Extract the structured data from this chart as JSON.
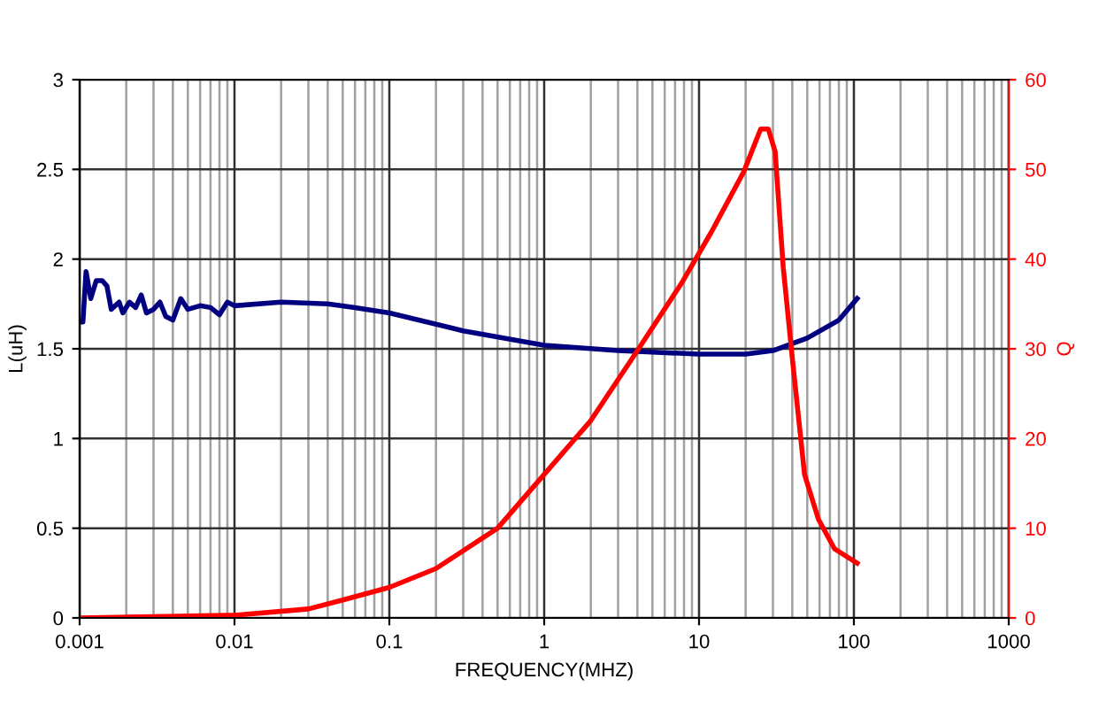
{
  "chart_data": {
    "type": "line",
    "xlabel": "FREQUENCY(MHZ)",
    "ylabel": "L(uH)",
    "y2label": "Q",
    "log": "x",
    "grid": true,
    "xlim": [
      0.001,
      1000
    ],
    "xticks": [
      0.001,
      0.01,
      0.1,
      1,
      10,
      100,
      1000
    ],
    "ylim": [
      0,
      3
    ],
    "yticks": [
      0,
      0.5,
      1,
      1.5,
      2,
      2.5,
      3
    ],
    "y2lim": [
      0,
      60
    ],
    "y2ticks": [
      0,
      10,
      20,
      30,
      40,
      50,
      60
    ],
    "series": [
      {
        "color": "#000080",
        "x": [
          0.001,
          0.00105,
          0.0011,
          0.00118,
          0.00128,
          0.0014,
          0.0015,
          0.0016,
          0.0018,
          0.0019,
          0.0021,
          0.0023,
          0.0025,
          0.0027,
          0.003,
          0.0033,
          0.0036,
          0.004,
          0.0045,
          0.005,
          0.006,
          0.007,
          0.008,
          0.009,
          0.01,
          0.02,
          0.04,
          0.06,
          0.1,
          0.3,
          1,
          3,
          10,
          20,
          30,
          50,
          80,
          105
        ],
        "values": [
          1.65,
          1.65,
          1.93,
          1.78,
          1.88,
          1.88,
          1.85,
          1.72,
          1.76,
          1.7,
          1.76,
          1.73,
          1.8,
          1.7,
          1.72,
          1.76,
          1.68,
          1.66,
          1.78,
          1.72,
          1.74,
          1.73,
          1.69,
          1.76,
          1.74,
          1.76,
          1.75,
          1.73,
          1.7,
          1.6,
          1.52,
          1.49,
          1.47,
          1.47,
          1.49,
          1.56,
          1.66,
          1.78
        ]
      },
      {
        "color": "#ff0000",
        "axis": "y2",
        "x": [
          0.001,
          0.01,
          0.03,
          0.05,
          0.1,
          0.2,
          0.5,
          1,
          2,
          4,
          7.7,
          12,
          19.4,
          25,
          28,
          31,
          35,
          40,
          48,
          59,
          75,
          105
        ],
        "values": [
          0,
          0.3,
          1,
          2,
          3.4,
          5.5,
          10,
          16,
          22,
          29.8,
          37.3,
          43,
          49.7,
          54.5,
          54.5,
          52,
          39,
          29,
          16,
          11,
          7.7,
          6.1
        ]
      }
    ]
  }
}
